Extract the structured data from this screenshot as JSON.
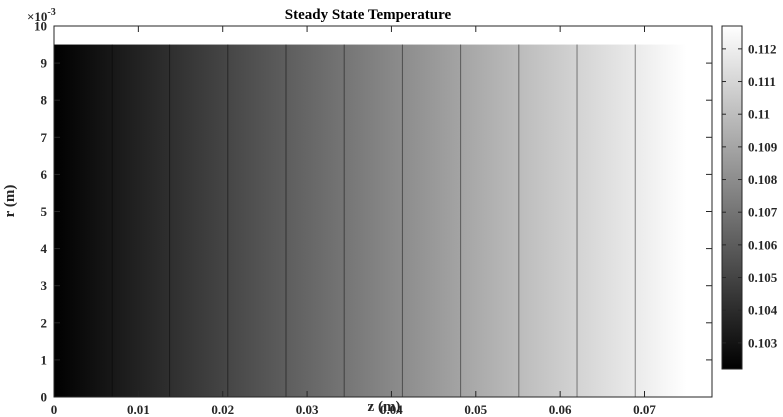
{
  "chart_data": {
    "type": "heatmap",
    "title": "Steady State Temperature",
    "xlabel": "z (m)",
    "ylabel": "r (m)",
    "xlim": [
      0,
      0.078
    ],
    "ylim": [
      0,
      0.01
    ],
    "x_ticks": [
      "0",
      "0.01",
      "0.02",
      "0.03",
      "0.04",
      "0.05",
      "0.06",
      "0.07"
    ],
    "x_tick_values": [
      0,
      0.01,
      0.02,
      0.03,
      0.04,
      0.05,
      0.06,
      0.07
    ],
    "y_ticks": [
      "0",
      "1",
      "2",
      "3",
      "4",
      "5",
      "6",
      "7",
      "8",
      "9",
      "10"
    ],
    "y_tick_values": [
      0,
      1,
      2,
      3,
      4,
      5,
      6,
      7,
      8,
      9,
      10
    ],
    "y_multiplier": "×10",
    "y_multiplier_exponent": "-3",
    "colormap": "gray",
    "colorbar": {
      "range": [
        0.1022,
        0.1127
      ],
      "ticks": [
        "0.103",
        "0.104",
        "0.105",
        "0.106",
        "0.107",
        "0.108",
        "0.109",
        "0.11",
        "0.111",
        "0.112"
      ],
      "tick_values": [
        0.103,
        0.104,
        0.105,
        0.106,
        0.107,
        0.108,
        0.109,
        0.11,
        0.111,
        0.112
      ]
    },
    "field": {
      "z_range": [
        0,
        0.075
      ],
      "r_range": [
        0,
        0.0095
      ],
      "value_at_z_min": 0.1022,
      "value_at_z_max": 0.1127,
      "variation": "linear in z, uniform in r"
    },
    "contour_z": [
      0.0069,
      0.0137,
      0.0206,
      0.0275,
      0.0344,
      0.0413,
      0.0482,
      0.0551,
      0.062,
      0.0689
    ]
  }
}
